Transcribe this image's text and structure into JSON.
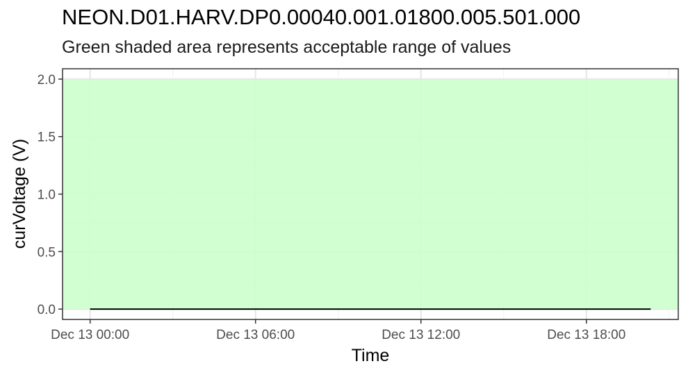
{
  "chart_data": {
    "type": "line",
    "title": "NEON.D01.HARV.DP0.00040.001.01800.005.501.000",
    "subtitle": "Green shaded area represents acceptable range of values",
    "xlabel": "Time",
    "ylabel": "curVoltage (V)",
    "x_range": [
      "Dec 13 -01:00",
      "Dec 13 21:20"
    ],
    "x_ticks": [
      "Dec 13 00:00",
      "Dec 13 06:00",
      "Dec 13 12:00",
      "Dec 13 18:00"
    ],
    "ylim": [
      -0.09,
      2.09
    ],
    "y_ticks": [
      "0.0",
      "0.5",
      "1.0",
      "1.5",
      "2.0"
    ],
    "acceptable_range": {
      "min": 0.0,
      "max": 2.0,
      "color": "#ccffcc"
    },
    "series": [
      {
        "x_start": "Dec 13 00:00",
        "x_end": "Dec 13 20:20",
        "values": [
          0,
          0
        ],
        "color": "#000000"
      }
    ],
    "grid": true
  }
}
